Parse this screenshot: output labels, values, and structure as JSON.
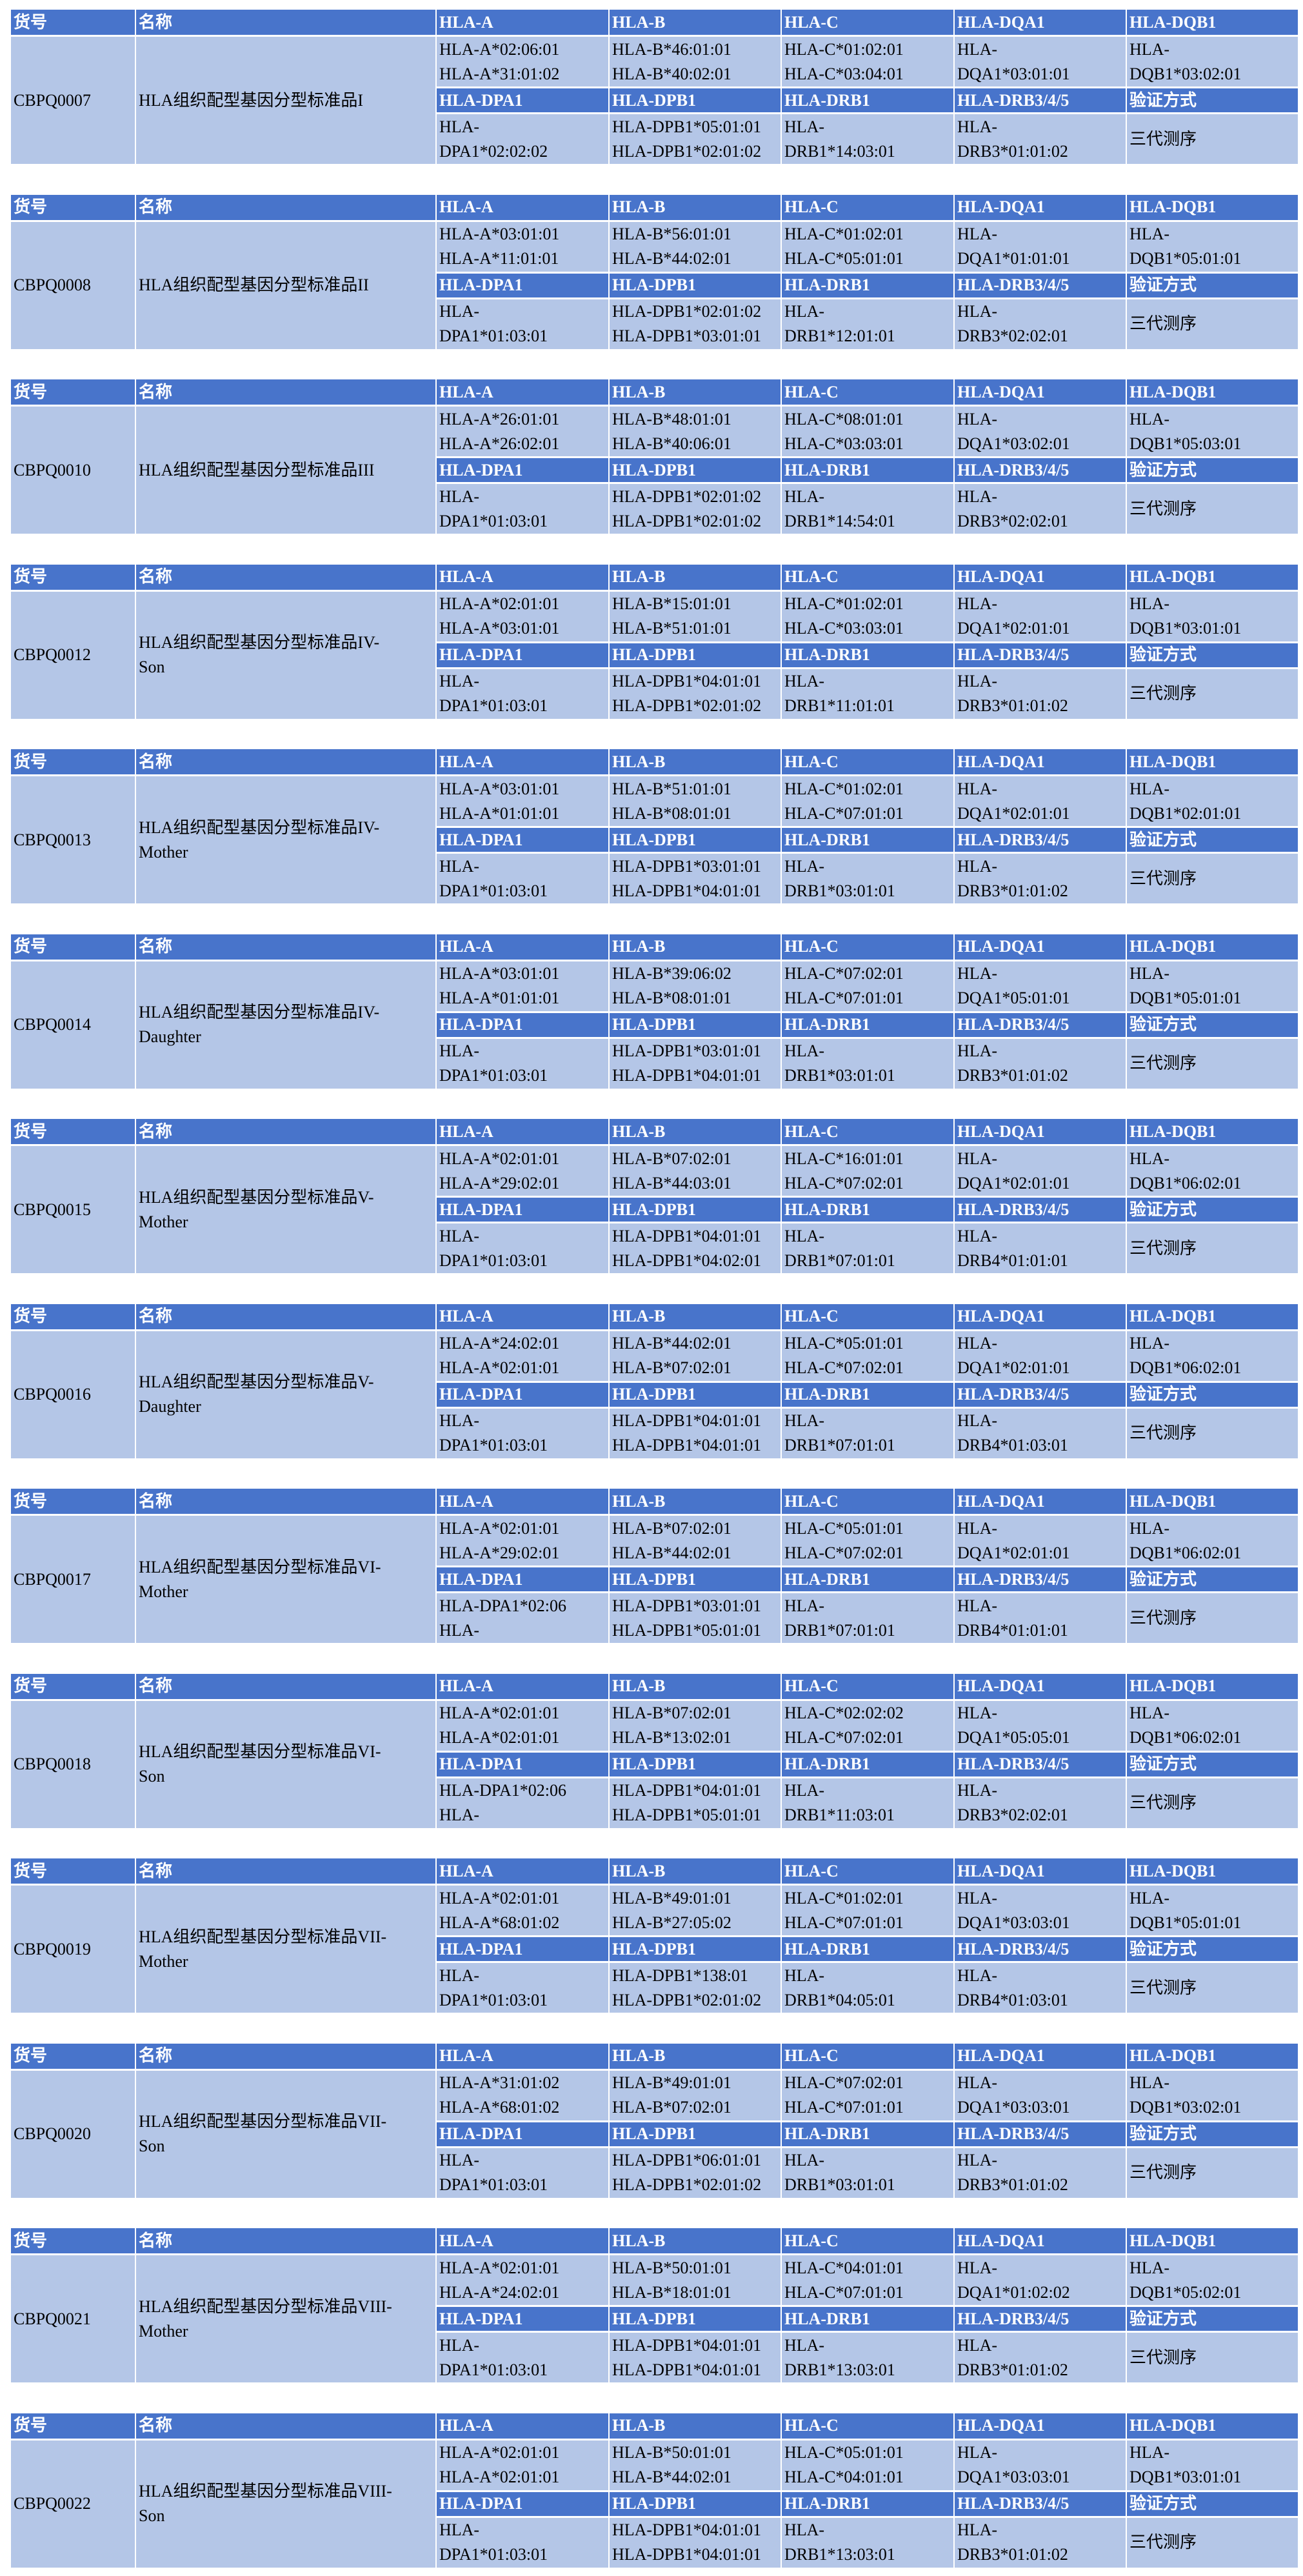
{
  "colors": {
    "header": "#4874CB",
    "cell": "#B4C6E7",
    "header_text": "#FFFFFF"
  },
  "headers": [
    "货号",
    "名称",
    "HLA-A",
    "HLA-B",
    "HLA-C",
    "HLA-DQA1",
    "HLA-DQB1"
  ],
  "subheaders": [
    "HLA-DPA1",
    "HLA-DPB1",
    "HLA-DRB1",
    "HLA-DRB3/4/5",
    "验证方式"
  ],
  "blocks": [
    {
      "id": "CBPQ0007",
      "name": [
        "HLA组织配型基因分型标准品I"
      ],
      "row1": [
        [
          "HLA-A*02:06:01",
          "HLA-A*31:01:02"
        ],
        [
          "HLA-B*46:01:01",
          "HLA-B*40:02:01"
        ],
        [
          "HLA-C*01:02:01",
          "HLA-C*03:04:01"
        ],
        [
          "HLA-",
          "DQA1*03:01:01"
        ],
        [
          "HLA-",
          "DQB1*03:02:01"
        ]
      ],
      "row2": [
        [
          "HLA-",
          "DPA1*02:02:02"
        ],
        [
          "HLA-DPB1*05:01:01",
          "HLA-DPB1*02:01:02"
        ],
        [
          "HLA-",
          "DRB1*14:03:01"
        ],
        [
          "HLA-",
          "DRB3*01:01:02"
        ]
      ],
      "method": "三代测序"
    },
    {
      "id": "CBPQ0008",
      "name": [
        "HLA组织配型基因分型标准品II"
      ],
      "row1": [
        [
          "HLA-A*03:01:01",
          "HLA-A*11:01:01"
        ],
        [
          "HLA-B*56:01:01",
          "HLA-B*44:02:01"
        ],
        [
          "HLA-C*01:02:01",
          "HLA-C*05:01:01"
        ],
        [
          "HLA-",
          "DQA1*01:01:01"
        ],
        [
          "HLA-",
          "DQB1*05:01:01"
        ]
      ],
      "row2": [
        [
          "HLA-",
          "DPA1*01:03:01"
        ],
        [
          "HLA-DPB1*02:01:02",
          "HLA-DPB1*03:01:01"
        ],
        [
          "HLA-",
          "DRB1*12:01:01"
        ],
        [
          "HLA-",
          "DRB3*02:02:01"
        ]
      ],
      "method": "三代测序"
    },
    {
      "id": "CBPQ0010",
      "name": [
        "HLA组织配型基因分型标准品III"
      ],
      "row1": [
        [
          "HLA-A*26:01:01",
          "HLA-A*26:02:01"
        ],
        [
          "HLA-B*48:01:01",
          "HLA-B*40:06:01"
        ],
        [
          "HLA-C*08:01:01",
          "HLA-C*03:03:01"
        ],
        [
          "HLA-",
          "DQA1*03:02:01"
        ],
        [
          "HLA-",
          "DQB1*05:03:01"
        ]
      ],
      "row2": [
        [
          "HLA-",
          "DPA1*01:03:01"
        ],
        [
          "HLA-DPB1*02:01:02",
          "HLA-DPB1*02:01:02"
        ],
        [
          "HLA-",
          "DRB1*14:54:01"
        ],
        [
          "HLA-",
          "DRB3*02:02:01"
        ]
      ],
      "method": "三代测序"
    },
    {
      "id": "CBPQ0012",
      "name": [
        "HLA组织配型基因分型标准品IV-",
        "Son"
      ],
      "row1": [
        [
          "HLA-A*02:01:01",
          "HLA-A*03:01:01"
        ],
        [
          "HLA-B*15:01:01",
          "HLA-B*51:01:01"
        ],
        [
          "HLA-C*01:02:01",
          "HLA-C*03:03:01"
        ],
        [
          "HLA-",
          "DQA1*02:01:01"
        ],
        [
          "HLA-",
          "DQB1*03:01:01"
        ]
      ],
      "row2": [
        [
          "HLA-",
          "DPA1*01:03:01"
        ],
        [
          "HLA-DPB1*04:01:01",
          "HLA-DPB1*02:01:02"
        ],
        [
          "HLA-",
          "DRB1*11:01:01"
        ],
        [
          "HLA-",
          "DRB3*01:01:02"
        ]
      ],
      "method": "三代测序"
    },
    {
      "id": "CBPQ0013",
      "name": [
        "HLA组织配型基因分型标准品IV-",
        "Mother"
      ],
      "row1": [
        [
          "HLA-A*03:01:01",
          "HLA-A*01:01:01"
        ],
        [
          "HLA-B*51:01:01",
          "HLA-B*08:01:01"
        ],
        [
          "HLA-C*01:02:01",
          "HLA-C*07:01:01"
        ],
        [
          "HLA-",
          "DQA1*02:01:01"
        ],
        [
          "HLA-",
          "DQB1*02:01:01"
        ]
      ],
      "row2": [
        [
          "HLA-",
          "DPA1*01:03:01"
        ],
        [
          "HLA-DPB1*03:01:01",
          "HLA-DPB1*04:01:01"
        ],
        [
          "HLA-",
          "DRB1*03:01:01"
        ],
        [
          "HLA-",
          "DRB3*01:01:02"
        ]
      ],
      "method": "三代测序"
    },
    {
      "id": "CBPQ0014",
      "name": [
        "HLA组织配型基因分型标准品IV-",
        "Daughter"
      ],
      "row1": [
        [
          "HLA-A*03:01:01",
          "HLA-A*01:01:01"
        ],
        [
          "HLA-B*39:06:02",
          "HLA-B*08:01:01"
        ],
        [
          "HLA-C*07:02:01",
          "HLA-C*07:01:01"
        ],
        [
          "HLA-",
          "DQA1*05:01:01"
        ],
        [
          "HLA-",
          "DQB1*05:01:01"
        ]
      ],
      "row2": [
        [
          "HLA-",
          "DPA1*01:03:01"
        ],
        [
          "HLA-DPB1*03:01:01",
          "HLA-DPB1*04:01:01"
        ],
        [
          "HLA-",
          "DRB1*03:01:01"
        ],
        [
          "HLA-",
          "DRB3*01:01:02"
        ]
      ],
      "method": "三代测序"
    },
    {
      "id": "CBPQ0015",
      "name": [
        "HLA组织配型基因分型标准品V-",
        "Mother"
      ],
      "row1": [
        [
          "HLA-A*02:01:01",
          "HLA-A*29:02:01"
        ],
        [
          "HLA-B*07:02:01",
          "HLA-B*44:03:01"
        ],
        [
          "HLA-C*16:01:01",
          "HLA-C*07:02:01"
        ],
        [
          "HLA-",
          "DQA1*02:01:01"
        ],
        [
          "HLA-",
          "DQB1*06:02:01"
        ]
      ],
      "row2": [
        [
          "HLA-",
          "DPA1*01:03:01"
        ],
        [
          "HLA-DPB1*04:01:01",
          "HLA-DPB1*04:02:01"
        ],
        [
          "HLA-",
          "DRB1*07:01:01"
        ],
        [
          "HLA-",
          "DRB4*01:01:01"
        ]
      ],
      "method": "三代测序"
    },
    {
      "id": "CBPQ0016",
      "name": [
        "HLA组织配型基因分型标准品V-",
        "Daughter"
      ],
      "row1": [
        [
          "HLA-A*24:02:01",
          "HLA-A*02:01:01"
        ],
        [
          "HLA-B*44:02:01",
          "HLA-B*07:02:01"
        ],
        [
          "HLA-C*05:01:01",
          "HLA-C*07:02:01"
        ],
        [
          "HLA-",
          "DQA1*02:01:01"
        ],
        [
          "HLA-",
          "DQB1*06:02:01"
        ]
      ],
      "row2": [
        [
          "HLA-",
          "DPA1*01:03:01"
        ],
        [
          "HLA-DPB1*04:01:01",
          "HLA-DPB1*04:01:01"
        ],
        [
          "HLA-",
          "DRB1*07:01:01"
        ],
        [
          "HLA-",
          "DRB4*01:03:01"
        ]
      ],
      "method": "三代测序"
    },
    {
      "id": "CBPQ0017",
      "name": [
        "HLA组织配型基因分型标准品VI-",
        "Mother"
      ],
      "row1": [
        [
          "HLA-A*02:01:01",
          "HLA-A*29:02:01"
        ],
        [
          "HLA-B*07:02:01",
          "HLA-B*44:02:01"
        ],
        [
          "HLA-C*05:01:01",
          "HLA-C*07:02:01"
        ],
        [
          "HLA-",
          "DQA1*02:01:01"
        ],
        [
          "HLA-",
          "DQB1*06:02:01"
        ]
      ],
      "row2": [
        [
          "HLA-DPA1*02:06",
          "HLA-"
        ],
        [
          "HLA-DPB1*03:01:01",
          "HLA-DPB1*05:01:01"
        ],
        [
          "HLA-",
          "DRB1*07:01:01"
        ],
        [
          "HLA-",
          "DRB4*01:01:01"
        ]
      ],
      "method": "三代测序"
    },
    {
      "id": "CBPQ0018",
      "name": [
        "HLA组织配型基因分型标准品VI-",
        "Son"
      ],
      "row1": [
        [
          "HLA-A*02:01:01",
          "HLA-A*02:01:01"
        ],
        [
          "HLA-B*07:02:01",
          "HLA-B*13:02:01"
        ],
        [
          "HLA-C*02:02:02",
          "HLA-C*07:02:01"
        ],
        [
          "HLA-",
          "DQA1*05:05:01"
        ],
        [
          "HLA-",
          "DQB1*06:02:01"
        ]
      ],
      "row2": [
        [
          "HLA-DPA1*02:06",
          "HLA-"
        ],
        [
          "HLA-DPB1*04:01:01",
          "HLA-DPB1*05:01:01"
        ],
        [
          "HLA-",
          "DRB1*11:03:01"
        ],
        [
          "HLA-",
          "DRB3*02:02:01"
        ]
      ],
      "method": "三代测序"
    },
    {
      "id": "CBPQ0019",
      "name": [
        "HLA组织配型基因分型标准品VII-",
        "Mother"
      ],
      "row1": [
        [
          "HLA-A*02:01:01",
          "HLA-A*68:01:02"
        ],
        [
          "HLA-B*49:01:01",
          "HLA-B*27:05:02"
        ],
        [
          "HLA-C*01:02:01",
          "HLA-C*07:01:01"
        ],
        [
          "HLA-",
          "DQA1*03:03:01"
        ],
        [
          "HLA-",
          "DQB1*05:01:01"
        ]
      ],
      "row2": [
        [
          "HLA-",
          "DPA1*01:03:01"
        ],
        [
          "HLA-DPB1*138:01",
          "HLA-DPB1*02:01:02"
        ],
        [
          "HLA-",
          "DRB1*04:05:01"
        ],
        [
          "HLA-",
          "DRB4*01:03:01"
        ]
      ],
      "method": "三代测序"
    },
    {
      "id": "CBPQ0020",
      "name": [
        "HLA组织配型基因分型标准品VII-",
        "Son"
      ],
      "row1": [
        [
          "HLA-A*31:01:02",
          "HLA-A*68:01:02"
        ],
        [
          "HLA-B*49:01:01",
          "HLA-B*07:02:01"
        ],
        [
          "HLA-C*07:02:01",
          "HLA-C*07:01:01"
        ],
        [
          "HLA-",
          "DQA1*03:03:01"
        ],
        [
          "HLA-",
          "DQB1*03:02:01"
        ]
      ],
      "row2": [
        [
          "HLA-",
          "DPA1*01:03:01"
        ],
        [
          "HLA-DPB1*06:01:01",
          "HLA-DPB1*02:01:02"
        ],
        [
          "HLA-",
          "DRB1*03:01:01"
        ],
        [
          "HLA-",
          "DRB3*01:01:02"
        ]
      ],
      "method": "三代测序"
    },
    {
      "id": "CBPQ0021",
      "name": [
        "HLA组织配型基因分型标准品VIII-",
        "Mother"
      ],
      "row1": [
        [
          "HLA-A*02:01:01",
          "HLA-A*24:02:01"
        ],
        [
          "HLA-B*50:01:01",
          "HLA-B*18:01:01"
        ],
        [
          "HLA-C*04:01:01",
          "HLA-C*07:01:01"
        ],
        [
          "HLA-",
          "DQA1*01:02:02"
        ],
        [
          "HLA-",
          "DQB1*05:02:01"
        ]
      ],
      "row2": [
        [
          "HLA-",
          "DPA1*01:03:01"
        ],
        [
          "HLA-DPB1*04:01:01",
          "HLA-DPB1*04:01:01"
        ],
        [
          "HLA-",
          "DRB1*13:03:01"
        ],
        [
          "HLA-",
          "DRB3*01:01:02"
        ]
      ],
      "method": "三代测序"
    },
    {
      "id": "CBPQ0022",
      "name": [
        "HLA组织配型基因分型标准品VIII-",
        "Son"
      ],
      "row1": [
        [
          "HLA-A*02:01:01",
          "HLA-A*02:01:01"
        ],
        [
          "HLA-B*50:01:01",
          "HLA-B*44:02:01"
        ],
        [
          "HLA-C*05:01:01",
          "HLA-C*04:01:01"
        ],
        [
          "HLA-",
          "DQA1*03:03:01"
        ],
        [
          "HLA-",
          "DQB1*03:01:01"
        ]
      ],
      "row2": [
        [
          "HLA-",
          "DPA1*01:03:01"
        ],
        [
          "HLA-DPB1*04:01:01",
          "HLA-DPB1*04:01:01"
        ],
        [
          "HLA-",
          "DRB1*13:03:01"
        ],
        [
          "HLA-",
          "DRB3*01:01:02"
        ]
      ],
      "method": "三代测序"
    }
  ]
}
